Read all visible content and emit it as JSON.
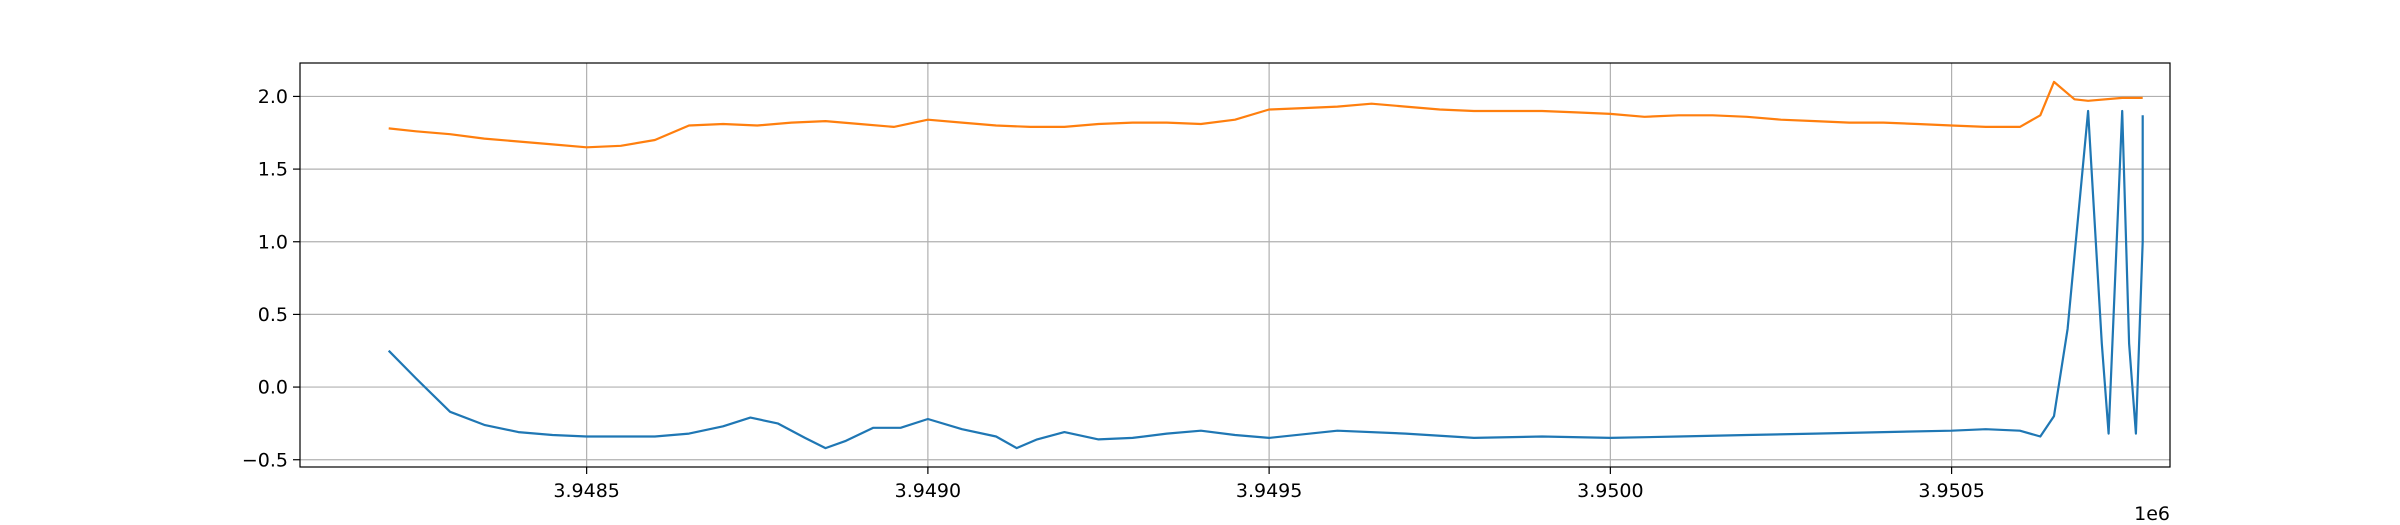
{
  "chart_data": {
    "type": "line",
    "title": "",
    "xlabel": "",
    "ylabel": "",
    "x_offset_label": "1e6",
    "xlim": [
      3.94808,
      3.95082
    ],
    "ylim": [
      -0.55,
      2.23
    ],
    "grid": true,
    "legend": "none",
    "xticks": [
      3.9485,
      3.949,
      3.9495,
      3.95,
      3.9505
    ],
    "xtick_labels": [
      "3.9485",
      "3.9490",
      "3.9495",
      "3.9500",
      "3.9505"
    ],
    "yticks": [
      -0.5,
      0.0,
      0.5,
      1.0,
      1.5,
      2.0
    ],
    "ytick_labels": [
      "−0.5",
      "0.0",
      "0.5",
      "1.0",
      "1.5",
      "2.0"
    ],
    "series": [
      {
        "color": "#1f77b4",
        "x": [
          3.94821,
          3.94825,
          3.9483,
          3.94835,
          3.9484,
          3.94845,
          3.9485,
          3.94855,
          3.9486,
          3.94865,
          3.9487,
          3.94874,
          3.94878,
          3.94882,
          3.94885,
          3.94888,
          3.94892,
          3.94896,
          3.949,
          3.94905,
          3.9491,
          3.94913,
          3.94916,
          3.9492,
          3.94925,
          3.9493,
          3.94935,
          3.9494,
          3.94945,
          3.9495,
          3.9496,
          3.9497,
          3.9498,
          3.9499,
          3.95,
          3.9501,
          3.9502,
          3.9503,
          3.9504,
          3.9505,
          3.95055,
          3.9506,
          3.95063,
          3.95065,
          3.95067,
          3.9507,
          3.95072,
          3.95073,
          3.95075,
          3.95076,
          3.95077,
          3.95078,
          3.95078
        ],
        "y": [
          0.25,
          0.06,
          -0.17,
          -0.26,
          -0.31,
          -0.33,
          -0.34,
          -0.34,
          -0.34,
          -0.32,
          -0.27,
          -0.21,
          -0.25,
          -0.35,
          -0.42,
          -0.37,
          -0.28,
          -0.28,
          -0.22,
          -0.29,
          -0.34,
          -0.42,
          -0.36,
          -0.31,
          -0.36,
          -0.35,
          -0.32,
          -0.3,
          -0.33,
          -0.35,
          -0.3,
          -0.32,
          -0.35,
          -0.34,
          -0.35,
          -0.34,
          -0.33,
          -0.32,
          -0.31,
          -0.3,
          -0.29,
          -0.3,
          -0.34,
          -0.2,
          0.4,
          1.9,
          0.3,
          -0.32,
          1.9,
          0.3,
          -0.32,
          1.0,
          1.87
        ]
      },
      {
        "color": "#ff7f0e",
        "x": [
          3.94821,
          3.94825,
          3.9483,
          3.94835,
          3.9484,
          3.94845,
          3.9485,
          3.94855,
          3.9486,
          3.94865,
          3.9487,
          3.94875,
          3.9488,
          3.94885,
          3.9489,
          3.94895,
          3.949,
          3.94905,
          3.9491,
          3.94915,
          3.9492,
          3.94925,
          3.9493,
          3.94935,
          3.9494,
          3.94945,
          3.9495,
          3.94955,
          3.9496,
          3.94965,
          3.9497,
          3.94975,
          3.9498,
          3.94985,
          3.9499,
          3.94995,
          3.95,
          3.95005,
          3.9501,
          3.95015,
          3.9502,
          3.95025,
          3.9503,
          3.95035,
          3.9504,
          3.95045,
          3.9505,
          3.95055,
          3.9506,
          3.95063,
          3.95065,
          3.95068,
          3.9507,
          3.95075,
          3.95078
        ],
        "y": [
          1.78,
          1.76,
          1.74,
          1.71,
          1.69,
          1.67,
          1.65,
          1.66,
          1.7,
          1.8,
          1.81,
          1.8,
          1.82,
          1.83,
          1.81,
          1.79,
          1.84,
          1.82,
          1.8,
          1.79,
          1.79,
          1.81,
          1.82,
          1.82,
          1.81,
          1.84,
          1.91,
          1.92,
          1.93,
          1.95,
          1.93,
          1.91,
          1.9,
          1.9,
          1.9,
          1.89,
          1.88,
          1.86,
          1.87,
          1.87,
          1.86,
          1.84,
          1.83,
          1.82,
          1.82,
          1.81,
          1.8,
          1.79,
          1.79,
          1.87,
          2.1,
          1.98,
          1.97,
          1.99,
          1.99
        ]
      }
    ]
  }
}
